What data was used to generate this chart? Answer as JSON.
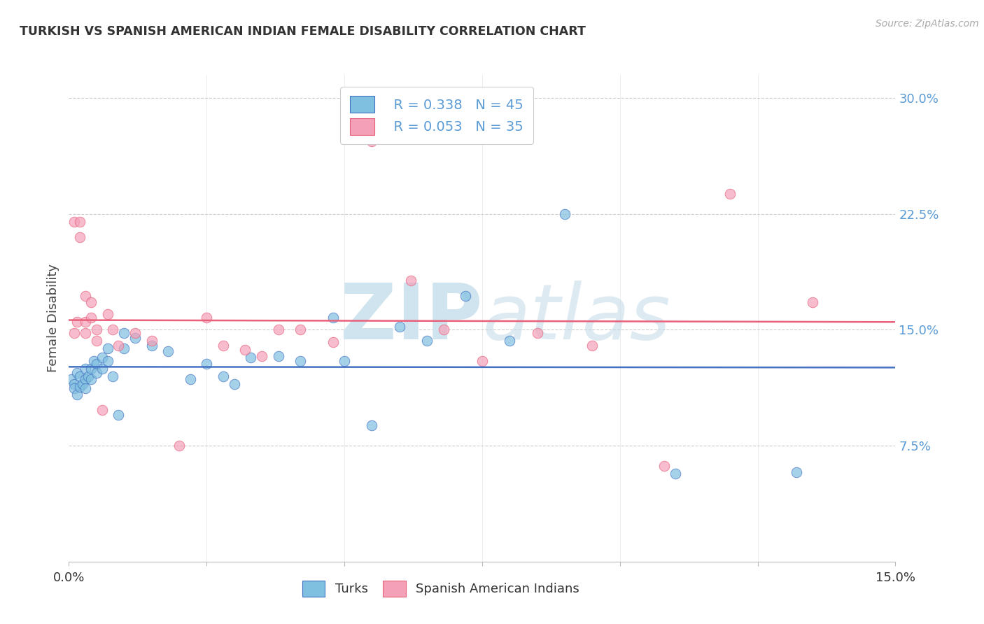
{
  "title": "TURKISH VS SPANISH AMERICAN INDIAN FEMALE DISABILITY CORRELATION CHART",
  "source": "Source: ZipAtlas.com",
  "ylabel": "Female Disability",
  "watermark": "ZIPatlas",
  "xlim": [
    0.0,
    0.15
  ],
  "ylim": [
    0.0,
    0.315
  ],
  "xtick_positions": [
    0.0,
    0.025,
    0.05,
    0.075,
    0.1,
    0.125,
    0.15
  ],
  "xtick_labels": [
    "0.0%",
    "",
    "",
    "",
    "",
    "",
    "15.0%"
  ],
  "yticks_right": [
    0.075,
    0.15,
    0.225,
    0.3
  ],
  "ytick_labels_right": [
    "7.5%",
    "15.0%",
    "22.5%",
    "30.0%"
  ],
  "legend_r1": "R = 0.338",
  "legend_n1": "N = 45",
  "legend_r2": "R = 0.053",
  "legend_n2": "N = 35",
  "legend_label1": "Turks",
  "legend_label2": "Spanish American Indians",
  "color_blue": "#7fbfdf",
  "color_pink": "#f4a0b8",
  "color_blue_line": "#4472c4",
  "color_pink_line": "#e8607a",
  "color_title": "#333333",
  "color_source": "#aaaaaa",
  "color_axis_right": "#5b9bd5",
  "color_watermark": "#d0e4f0",
  "turks_x": [
    0.0005,
    0.001,
    0.001,
    0.0015,
    0.0015,
    0.002,
    0.002,
    0.0025,
    0.003,
    0.003,
    0.003,
    0.0035,
    0.004,
    0.004,
    0.0045,
    0.005,
    0.005,
    0.006,
    0.006,
    0.007,
    0.007,
    0.008,
    0.009,
    0.01,
    0.01,
    0.012,
    0.015,
    0.018,
    0.022,
    0.025,
    0.028,
    0.03,
    0.033,
    0.038,
    0.042,
    0.048,
    0.05,
    0.055,
    0.06,
    0.065,
    0.072,
    0.08,
    0.09,
    0.11,
    0.132
  ],
  "turks_y": [
    0.118,
    0.115,
    0.112,
    0.122,
    0.108,
    0.12,
    0.113,
    0.115,
    0.125,
    0.118,
    0.112,
    0.12,
    0.125,
    0.118,
    0.13,
    0.128,
    0.122,
    0.132,
    0.125,
    0.138,
    0.13,
    0.12,
    0.095,
    0.148,
    0.138,
    0.145,
    0.14,
    0.136,
    0.118,
    0.128,
    0.12,
    0.115,
    0.132,
    0.133,
    0.13,
    0.158,
    0.13,
    0.088,
    0.152,
    0.143,
    0.172,
    0.143,
    0.225,
    0.057,
    0.058
  ],
  "spanish_x": [
    0.001,
    0.001,
    0.0015,
    0.002,
    0.002,
    0.003,
    0.003,
    0.003,
    0.004,
    0.004,
    0.005,
    0.005,
    0.006,
    0.007,
    0.008,
    0.009,
    0.012,
    0.015,
    0.02,
    0.025,
    0.028,
    0.032,
    0.035,
    0.038,
    0.042,
    0.048,
    0.055,
    0.062,
    0.068,
    0.075,
    0.085,
    0.095,
    0.108,
    0.12,
    0.135
  ],
  "spanish_y": [
    0.148,
    0.22,
    0.155,
    0.22,
    0.21,
    0.155,
    0.148,
    0.172,
    0.168,
    0.158,
    0.15,
    0.143,
    0.098,
    0.16,
    0.15,
    0.14,
    0.148,
    0.143,
    0.075,
    0.158,
    0.14,
    0.137,
    0.133,
    0.15,
    0.15,
    0.142,
    0.272,
    0.182,
    0.15,
    0.13,
    0.148,
    0.14,
    0.062,
    0.238,
    0.168
  ]
}
